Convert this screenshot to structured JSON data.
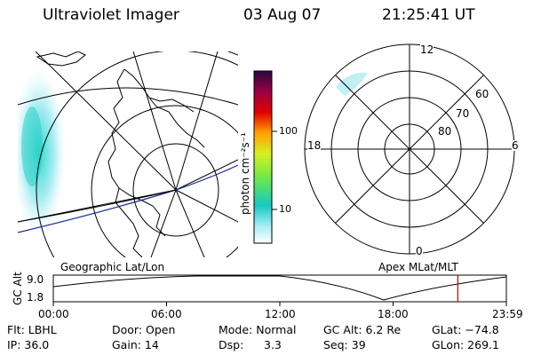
{
  "header": {
    "instrument": "Ultraviolet Imager",
    "date": "03 Aug 07",
    "time": "21:25:41 UT"
  },
  "geo_panel": {
    "label": "Geographic Lat/Lon"
  },
  "apex_panel": {
    "label": "Apex MLat/MLT",
    "mlt_labels": {
      "top": "12",
      "bottom": "0",
      "left": "18",
      "right": "6"
    },
    "lat_labels": [
      "80",
      "70",
      "60"
    ]
  },
  "colorbar": {
    "units": "photon cm⁻²s⁻¹",
    "tick_labels": [
      "100",
      "10"
    ],
    "colors": [
      "#ffffff",
      "#a6eef3",
      "#14c9c2",
      "#6fe84a",
      "#d8ef1f",
      "#ffa100",
      "#e00000",
      "#9a0044",
      "#2a0a3b"
    ]
  },
  "timeline": {
    "ylabel": "GC Alt",
    "ymax": "9.0",
    "ymin": "1.8",
    "x_ticks": [
      "00:00",
      "06:00",
      "12:00",
      "18:00",
      "23:59"
    ],
    "marker_time_hours": 21.43,
    "marker_color": "#cc0000"
  },
  "info": {
    "flt": "Flt: LBHL",
    "ip": "IP: 36.0",
    "door": "Door: Open",
    "gain": "Gain: 14",
    "mode": "Mode: Normal",
    "dsp_label": "Dsp:",
    "dsp_value": "3.3",
    "gc_alt": "GC Alt: 6.2 Re",
    "seq": "Seq: 39",
    "glat": "GLat: −74.8",
    "glon": "GLon: 269.1"
  }
}
